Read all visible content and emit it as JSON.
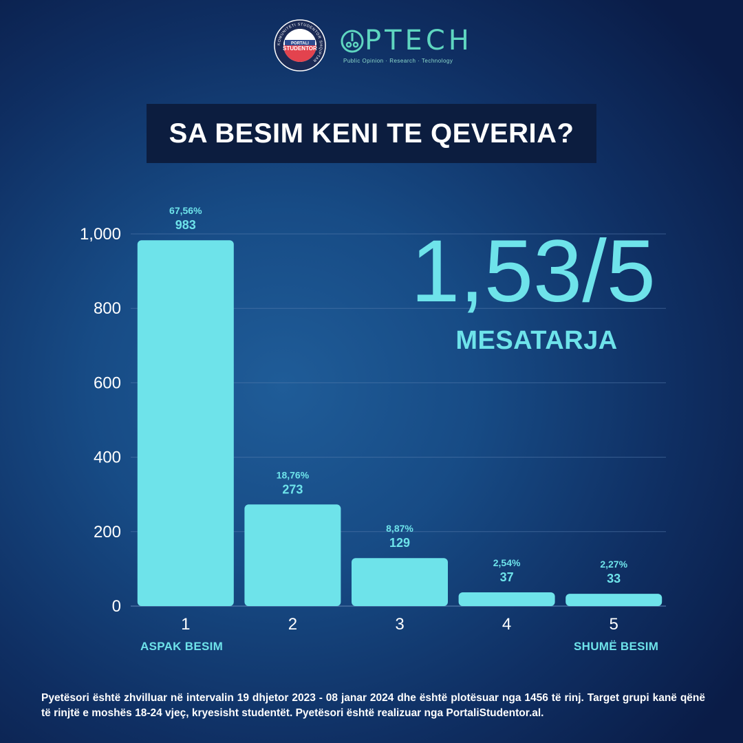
{
  "logos": {
    "seal_text_top": "KOMUNITETI STUDENTOR SHQIPTAR",
    "seal_text_center_1": "PORTALI",
    "seal_text_center_2": "STUDENTOR",
    "optech_name": "PTECH",
    "optech_tagline": "Public Opinion · Research · Technology"
  },
  "title": "SA BESIM KENI TE QEVERIA?",
  "average": {
    "value": "1,53/5",
    "label": "MESATARJA"
  },
  "scale_ends": {
    "low": "ASPAK BESIM",
    "high": "SHUMË BESIM"
  },
  "chart_data": {
    "type": "bar",
    "title": "SA BESIM KENI TE QEVERIA?",
    "categories": [
      "1",
      "2",
      "3",
      "4",
      "5"
    ],
    "values": [
      983,
      273,
      129,
      37,
      33
    ],
    "percent_labels": [
      "67,56%",
      "18,76%",
      "8,87%",
      "2,54%",
      "2,27%"
    ],
    "value_labels": [
      "983",
      "273",
      "129",
      "37",
      "33"
    ],
    "ylim": [
      0,
      1000
    ],
    "yticks": [
      0,
      200,
      400,
      600,
      800,
      1000
    ],
    "ytick_labels": [
      "0",
      "200",
      "400",
      "600",
      "800",
      "1,000"
    ],
    "grid": true,
    "colors": {
      "bar": "#6ee3ea",
      "grid": "#5a7fb0",
      "labels": "#6ee3ea"
    }
  },
  "footer": "Pyetësori është zhvilluar në intervalin 19 dhjetor 2023 - 08 janar 2024 dhe është plotësuar nga 1456 të rinj. Target grupi kanë qënë të rinjtë e moshës 18-24 vjeç, kryesisht studentët. Pyetësori është realizuar nga PortaliStudentor.al."
}
